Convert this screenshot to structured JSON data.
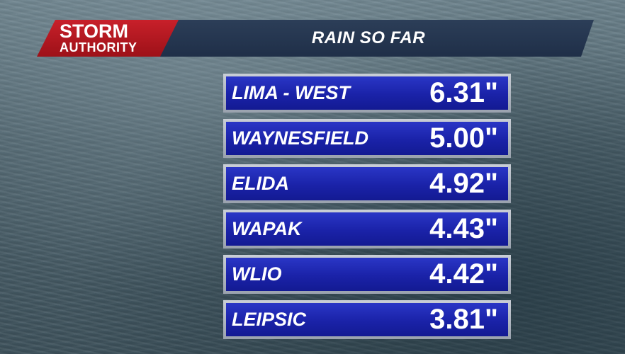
{
  "header": {
    "logo_line1": "STORM",
    "logo_line2": "AUTHORITY",
    "title": "RAIN SO FAR"
  },
  "colors": {
    "logo_red": "#c8202a",
    "header_navy": "#24354f",
    "row_blue": "#1a22a8",
    "row_border": "#b4bac3"
  },
  "rainfall": [
    {
      "location": "LIMA - WEST",
      "amount": "6.31\""
    },
    {
      "location": "WAYNESFIELD",
      "amount": "5.00\""
    },
    {
      "location": "ELIDA",
      "amount": "4.92\""
    },
    {
      "location": "WAPAK",
      "amount": "4.43\""
    },
    {
      "location": "WLIO",
      "amount": "4.42\""
    },
    {
      "location": "LEIPSIC",
      "amount": "3.81\""
    }
  ]
}
